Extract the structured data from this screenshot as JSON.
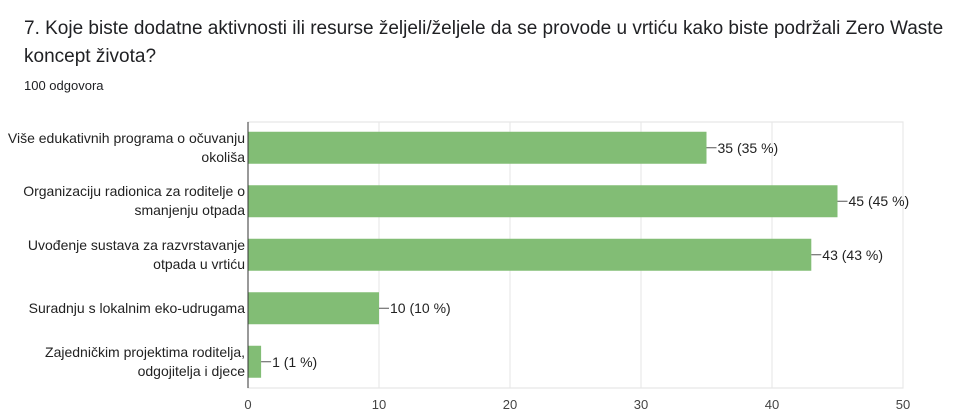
{
  "title": "7. Koje biste dodatne aktivnosti ili resurse željeli/željele da se provode u vrtiću kako biste podržali Zero Waste koncept života?",
  "subtitle": "100 odgovora",
  "chart_data": {
    "type": "bar",
    "orientation": "horizontal",
    "categories": [
      "Više edukativnih programa o očuvanju okoliša",
      "Organizaciju radionica za roditelje o smanjenju otpada",
      "Uvođenje sustava za razvrstavanje otpada u vrtiću",
      "Suradnju s lokalnim eko-udrugama",
      "Zajedničkim projektima roditelja, odgojitelja i djece"
    ],
    "values": [
      35,
      45,
      43,
      10,
      1
    ],
    "value_labels": [
      "35 (35 %)",
      "45 (45 %)",
      "43 (43 %)",
      "10 (10 %)",
      "1 (1 %)"
    ],
    "color": "#82bd75",
    "xlim": [
      0,
      50
    ],
    "xticks": [
      0,
      10,
      20,
      30,
      40,
      50
    ],
    "grid": true
  }
}
